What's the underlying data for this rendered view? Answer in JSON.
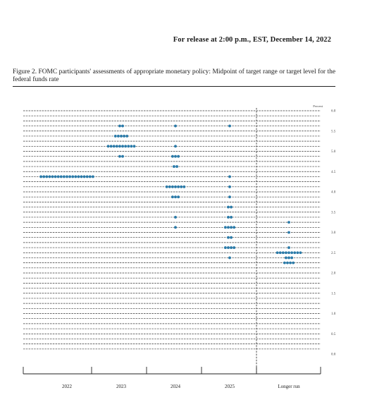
{
  "header": {
    "release_line": "For release at 2:00 p.m., EST, December 14, 2022",
    "figure_title": "Figure 2. FOMC participants' assessments of appropriate monetary policy: Midpoint of target range or target level for the federal funds rate"
  },
  "colors": {
    "dot": "#2a7aa8",
    "grid": "#333333",
    "axis": "#222222"
  },
  "chart_data": {
    "type": "scatter",
    "title": "",
    "xlabel": "",
    "ylabel": "Percent",
    "ylim": [
      0,
      6
    ],
    "yticks": [
      "0.0",
      "0.5",
      "1.0",
      "1.5",
      "2.0",
      "2.5",
      "3.0",
      "3.5",
      "4.0",
      "4.5",
      "5.0",
      "5.5",
      "6.0"
    ],
    "categories": [
      "2022",
      "2023",
      "2024",
      "2025",
      "Longer run"
    ],
    "gridlines": [
      0.125,
      0.25,
      0.375,
      0.5,
      0.625,
      0.75,
      0.875,
      1.0,
      1.125,
      1.25,
      1.375,
      1.5,
      1.625,
      1.75,
      1.875,
      2.0,
      2.125,
      2.25,
      2.375,
      2.5,
      2.625,
      2.75,
      2.875,
      3.0,
      3.125,
      3.25,
      3.375,
      3.5,
      3.625,
      3.75,
      3.875,
      4.0,
      4.125,
      4.25,
      4.375,
      4.5,
      4.625,
      4.75,
      4.875,
      5.0,
      5.125,
      5.25,
      5.375,
      5.5,
      5.625,
      5.75,
      5.875,
      6.0
    ],
    "grid": true,
    "longer_run_divider": true,
    "series": [
      {
        "category": "2022",
        "points": [
          {
            "y": 4.375,
            "count": 19
          }
        ]
      },
      {
        "category": "2023",
        "points": [
          {
            "y": 5.625,
            "count": 2
          },
          {
            "y": 5.375,
            "count": 5
          },
          {
            "y": 5.125,
            "count": 10
          },
          {
            "y": 4.875,
            "count": 2
          }
        ]
      },
      {
        "category": "2024",
        "points": [
          {
            "y": 5.625,
            "count": 1
          },
          {
            "y": 5.125,
            "count": 1
          },
          {
            "y": 4.875,
            "count": 3
          },
          {
            "y": 4.625,
            "count": 2
          },
          {
            "y": 4.125,
            "count": 7
          },
          {
            "y": 3.875,
            "count": 3
          },
          {
            "y": 3.375,
            "count": 1
          },
          {
            "y": 3.125,
            "count": 1
          }
        ]
      },
      {
        "category": "2025",
        "points": [
          {
            "y": 5.625,
            "count": 1
          },
          {
            "y": 4.375,
            "count": 1
          },
          {
            "y": 4.125,
            "count": 1
          },
          {
            "y": 3.875,
            "count": 1
          },
          {
            "y": 3.625,
            "count": 2
          },
          {
            "y": 3.375,
            "count": 2
          },
          {
            "y": 3.125,
            "count": 4
          },
          {
            "y": 2.875,
            "count": 2
          },
          {
            "y": 2.625,
            "count": 4
          },
          {
            "y": 2.375,
            "count": 1
          }
        ]
      },
      {
        "category": "Longer run",
        "points": [
          {
            "y": 3.25,
            "count": 1
          },
          {
            "y": 3.0,
            "count": 1
          },
          {
            "y": 2.625,
            "count": 1
          },
          {
            "y": 2.5,
            "count": 9
          },
          {
            "y": 2.375,
            "count": 3
          },
          {
            "y": 2.25,
            "count": 4
          }
        ]
      }
    ]
  }
}
